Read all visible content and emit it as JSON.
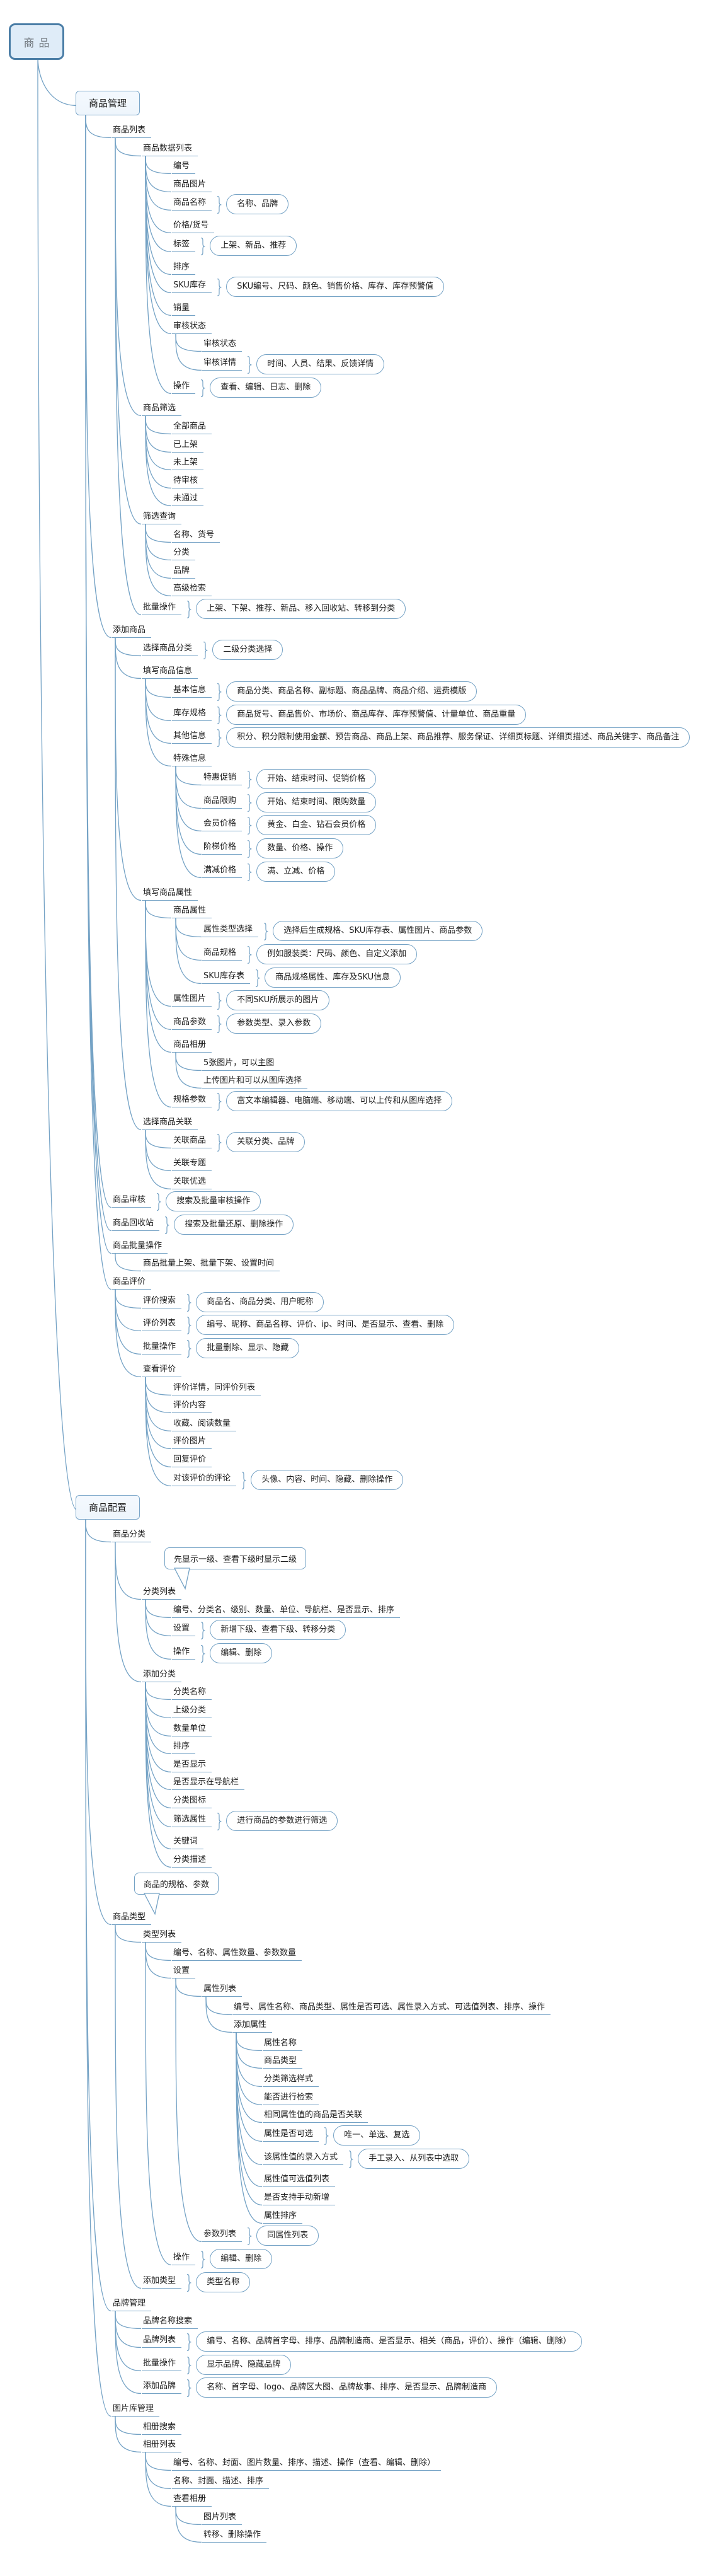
{
  "colors": {
    "connector": "#74a2c5",
    "topic_border": "#7ba6c9",
    "topic_fill": "#eef5fc",
    "root_border": "#4a7da6",
    "root_fill": "#dfecf8",
    "root_text": "#6e757b",
    "text": "#1c1c1c"
  },
  "tree": {
    "label": "商品",
    "kind": "root",
    "children": [
      {
        "label": "商品管理",
        "kind": "box",
        "children": [
          {
            "label": "商品列表",
            "children": [
              {
                "label": "商品数据列表",
                "children": [
                  {
                    "label": "编号"
                  },
                  {
                    "label": "商品图片"
                  },
                  {
                    "label": "商品名称",
                    "pill": "名称、品牌"
                  },
                  {
                    "label": "价格/货号"
                  },
                  {
                    "label": "标签",
                    "pill": "上架、新品、推荐"
                  },
                  {
                    "label": "排序"
                  },
                  {
                    "label": "SKU库存",
                    "pill": "SKU编号、尺码、颜色、销售价格、库存、库存预警值"
                  },
                  {
                    "label": "销量"
                  },
                  {
                    "label": "审核状态",
                    "children": [
                      {
                        "label": "审核状态"
                      },
                      {
                        "label": "审核详情",
                        "pill": "时间、人员、结果、反馈详情"
                      }
                    ]
                  },
                  {
                    "label": "操作",
                    "pill": "查看、编辑、日志、删除"
                  }
                ]
              },
              {
                "label": "商品筛选",
                "children": [
                  {
                    "label": "全部商品"
                  },
                  {
                    "label": "已上架"
                  },
                  {
                    "label": "未上架"
                  },
                  {
                    "label": "待审核"
                  },
                  {
                    "label": "未通过"
                  }
                ]
              },
              {
                "label": "筛选查询",
                "children": [
                  {
                    "label": "名称、货号"
                  },
                  {
                    "label": "分类"
                  },
                  {
                    "label": "品牌"
                  },
                  {
                    "label": "高级检索"
                  }
                ]
              },
              {
                "label": "批量操作",
                "pill": "上架、下架、推荐、新品、移入回收站、转移到分类"
              }
            ]
          },
          {
            "label": "添加商品",
            "children": [
              {
                "label": "选择商品分类",
                "pill": "二级分类选择"
              },
              {
                "label": "填写商品信息",
                "children": [
                  {
                    "label": "基本信息",
                    "pill": "商品分类、商品名称、副标题、商品品牌、商品介绍、运费模版"
                  },
                  {
                    "label": "库存规格",
                    "pill": "商品货号、商品售价、市场价、商品库存、库存预警值、计量单位、商品重量"
                  },
                  {
                    "label": "其他信息",
                    "pill": "积分、积分限制使用金额、预告商品、商品上架、商品推荐、服务保证、详细页标题、详细页描述、商品关键字、商品备注"
                  },
                  {
                    "label": "特殊信息",
                    "children": [
                      {
                        "label": "特惠促销",
                        "pill": "开始、结束时间、促销价格"
                      },
                      {
                        "label": "商品限购",
                        "pill": "开始、结束时间、限购数量"
                      },
                      {
                        "label": "会员价格",
                        "pill": "黄金、白金、钻石会员价格"
                      },
                      {
                        "label": "阶梯价格",
                        "pill": "数量、价格、操作"
                      },
                      {
                        "label": "满减价格",
                        "pill": "满、立减、价格"
                      }
                    ]
                  }
                ]
              },
              {
                "label": "填写商品属性",
                "children": [
                  {
                    "label": "商品属性",
                    "children": [
                      {
                        "label": "属性类型选择",
                        "pill": "选择后生成规格、SKU库存表、属性图片、商品参数"
                      },
                      {
                        "label": "商品规格",
                        "pill": "例如服装类：尺码、颜色、自定义添加"
                      },
                      {
                        "label": "SKU库存表",
                        "pill": "商品规格属性、库存及SKU信息"
                      }
                    ]
                  },
                  {
                    "label": "属性图片",
                    "pill": "不同SKU所展示的图片"
                  },
                  {
                    "label": "商品参数",
                    "pill": "参数类型、录入参数"
                  },
                  {
                    "label": "商品相册",
                    "children": [
                      {
                        "label": "5张图片，可以主图"
                      },
                      {
                        "label": "上传图片和可以从图库选择"
                      }
                    ]
                  },
                  {
                    "label": "规格参数",
                    "pill": "富文本编辑器、电脑端、移动端、可以上传和从图库选择"
                  }
                ]
              },
              {
                "label": "选择商品关联",
                "children": [
                  {
                    "label": "关联商品",
                    "pill": "关联分类、品牌"
                  },
                  {
                    "label": "关联专题"
                  },
                  {
                    "label": "关联优选"
                  }
                ]
              }
            ]
          },
          {
            "label": "商品审核",
            "pill": "搜索及批量审核操作"
          },
          {
            "label": "商品回收站",
            "pill": "搜索及批量还原、删除操作"
          },
          {
            "label": "商品批量操作",
            "children": [
              {
                "label": "商品批量上架、批量下架、设置时间"
              }
            ]
          },
          {
            "label": "商品评价",
            "children": [
              {
                "label": "评价搜索",
                "pill": "商品名、商品分类、用户昵称"
              },
              {
                "label": "评价列表",
                "pill": "编号、昵称、商品名称、评价、ip、时间、是否显示、查看、删除"
              },
              {
                "label": "批量操作",
                "pill": "批量删除、显示、隐藏"
              },
              {
                "label": "查看评价",
                "children": [
                  {
                    "label": "评价详情，同评价列表"
                  },
                  {
                    "label": "评价内容"
                  },
                  {
                    "label": "收藏、阅读数量"
                  },
                  {
                    "label": "评价图片"
                  },
                  {
                    "label": "回复评价"
                  },
                  {
                    "label": "对该评价的评论",
                    "pill": "头像、内容、时间、隐藏、删除操作"
                  }
                ]
              }
            ]
          }
        ]
      },
      {
        "label": "商品配置",
        "kind": "box",
        "children": [
          {
            "label": "商品分类",
            "children": [
              {
                "label": "先显示一级、查看下级时显示二级",
                "kind": "callout"
              },
              {
                "label": "分类列表",
                "children": [
                  {
                    "label": "编号、分类名、级别、数量、单位、导航栏、是否显示、排序"
                  },
                  {
                    "label": "设置",
                    "pill": "新增下级、查看下级、转移分类"
                  },
                  {
                    "label": "操作",
                    "pill": "编辑、删除"
                  }
                ]
              },
              {
                "label": "添加分类",
                "children": [
                  {
                    "label": "分类名称"
                  },
                  {
                    "label": "上级分类"
                  },
                  {
                    "label": "数量单位"
                  },
                  {
                    "label": "排序"
                  },
                  {
                    "label": "是否显示"
                  },
                  {
                    "label": "是否显示在导航栏"
                  },
                  {
                    "label": "分类图标"
                  },
                  {
                    "label": "筛选属性",
                    "pill": "进行商品的参数进行筛选"
                  },
                  {
                    "label": "关键词"
                  },
                  {
                    "label": "分类描述"
                  }
                ]
              }
            ]
          },
          {
            "label": "商品的规格、参数",
            "kind": "callout"
          },
          {
            "label": "商品类型",
            "children": [
              {
                "label": "类型列表",
                "children": [
                  {
                    "label": "编号、名称、属性数量、参数数量"
                  },
                  {
                    "label": "设置",
                    "children": [
                      {
                        "label": "属性列表",
                        "children": [
                          {
                            "label": "编号、属性名称、商品类型、属性是否可选、属性录入方式、可选值列表、排序、操作"
                          },
                          {
                            "label": "添加属性",
                            "children": [
                              {
                                "label": "属性名称"
                              },
                              {
                                "label": "商品类型"
                              },
                              {
                                "label": "分类筛选样式"
                              },
                              {
                                "label": "能否进行检索"
                              },
                              {
                                "label": "相同属性值的商品是否关联"
                              },
                              {
                                "label": "属性是否可选",
                                "pill": "唯一、单选、复选"
                              },
                              {
                                "label": "该属性值的录入方式",
                                "pill": "手工录入、从列表中选取"
                              },
                              {
                                "label": "属性值可选值列表"
                              },
                              {
                                "label": "是否支持手动新增"
                              },
                              {
                                "label": "属性排序"
                              }
                            ]
                          }
                        ]
                      },
                      {
                        "label": "参数列表",
                        "pill": "同属性列表"
                      }
                    ]
                  },
                  {
                    "label": "操作",
                    "pill": "编辑、删除"
                  }
                ]
              },
              {
                "label": "添加类型",
                "pill": "类型名称"
              }
            ]
          },
          {
            "label": "品牌管理",
            "children": [
              {
                "label": "品牌名称搜索"
              },
              {
                "label": "品牌列表",
                "pill": "编号、名称、品牌首字母、排序、品牌制造商、是否显示、相关（商品，评价）、操作（编辑、删除）"
              },
              {
                "label": "批量操作",
                "pill": "显示品牌、隐藏品牌"
              },
              {
                "label": "添加品牌",
                "pill": "名称、首字母、logo、品牌区大图、品牌故事、排序、是否显示、品牌制造商"
              }
            ]
          },
          {
            "label": "图片库管理",
            "children": [
              {
                "label": "相册搜索"
              },
              {
                "label": "相册列表",
                "children": [
                  {
                    "label": "编号、名称、封面、图片数量、排序、描述、操作（查看、编辑、删除）"
                  },
                  {
                    "label": "名称、封面、描述、排序"
                  },
                  {
                    "label": "查看相册",
                    "children": [
                      {
                        "label": "图片列表"
                      },
                      {
                        "label": "转移、删除操作"
                      }
                    ]
                  }
                ]
              }
            ]
          }
        ]
      }
    ]
  }
}
